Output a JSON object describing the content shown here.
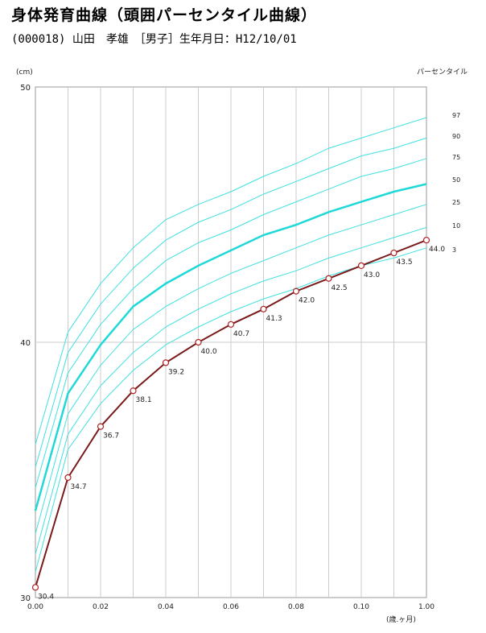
{
  "header": {
    "title": "身体発育曲線（頭囲パーセンタイル曲線）",
    "subtitle": "(000018) 山田　孝雄　［男子］生年月日：H12/10/01"
  },
  "colors": {
    "percentile": "#40e0e0",
    "median": "#20d8d8",
    "patient_line": "#7a1a1a",
    "grid": "#cccccc"
  },
  "chart_data": {
    "type": "line",
    "ylabel": "(cm)",
    "xlabel": "(歳.ヶ月)",
    "legend_title": "パーセンタイル",
    "xlim": [
      0,
      0.12
    ],
    "ylim": [
      30,
      50
    ],
    "x_ticks": [
      "0.00",
      "0.02",
      "0.04",
      "0.06",
      "0.08",
      "0.10",
      "1.00"
    ],
    "y_ticks": [
      "30",
      "40",
      "50"
    ],
    "x": [
      0,
      0.01,
      0.02,
      0.03,
      0.04,
      0.05,
      0.06,
      0.07,
      0.08,
      0.09,
      0.1,
      0.11,
      0.12
    ],
    "percentiles": [
      {
        "name": "97",
        "values": [
          36.0,
          40.4,
          42.3,
          43.7,
          44.8,
          45.4,
          45.9,
          46.5,
          47.0,
          47.6,
          48.0,
          48.4,
          48.8
        ]
      },
      {
        "name": "90",
        "values": [
          35.1,
          39.6,
          41.5,
          42.9,
          44.0,
          44.7,
          45.2,
          45.8,
          46.3,
          46.8,
          47.3,
          47.6,
          48.0
        ]
      },
      {
        "name": "75",
        "values": [
          34.3,
          38.8,
          40.7,
          42.1,
          43.2,
          43.9,
          44.4,
          45.0,
          45.5,
          46.0,
          46.5,
          46.8,
          47.2
        ]
      },
      {
        "name": "50",
        "values": [
          33.4,
          38.0,
          39.9,
          41.4,
          42.3,
          43.0,
          43.6,
          44.2,
          44.6,
          45.1,
          45.5,
          45.9,
          46.2
        ]
      },
      {
        "name": "25",
        "values": [
          32.5,
          37.2,
          39.1,
          40.5,
          41.4,
          42.1,
          42.7,
          43.2,
          43.7,
          44.2,
          44.6,
          45.0,
          45.4
        ]
      },
      {
        "name": "10",
        "values": [
          31.7,
          36.4,
          38.3,
          39.6,
          40.6,
          41.3,
          41.9,
          42.4,
          42.8,
          43.3,
          43.7,
          44.1,
          44.5
        ]
      },
      {
        "name": "3",
        "values": [
          31.0,
          35.8,
          37.6,
          38.9,
          39.9,
          40.6,
          41.2,
          41.7,
          42.1,
          42.6,
          43.0,
          43.3,
          43.7
        ]
      }
    ],
    "patient": {
      "x": [
        0,
        0.01,
        0.02,
        0.03,
        0.04,
        0.05,
        0.06,
        0.07,
        0.08,
        0.09,
        0.1,
        0.11,
        0.12
      ],
      "values": [
        30.4,
        34.7,
        36.7,
        38.1,
        39.2,
        40.0,
        40.7,
        41.3,
        42.0,
        42.5,
        43.0,
        43.5,
        44.0
      ],
      "labels": [
        "30.4",
        "34.7",
        "36.7",
        "38.1",
        "39.2",
        "40.0",
        "40.7",
        "41.3",
        "42.0",
        "42.5",
        "43.0",
        "43.5",
        "44.0"
      ]
    }
  }
}
